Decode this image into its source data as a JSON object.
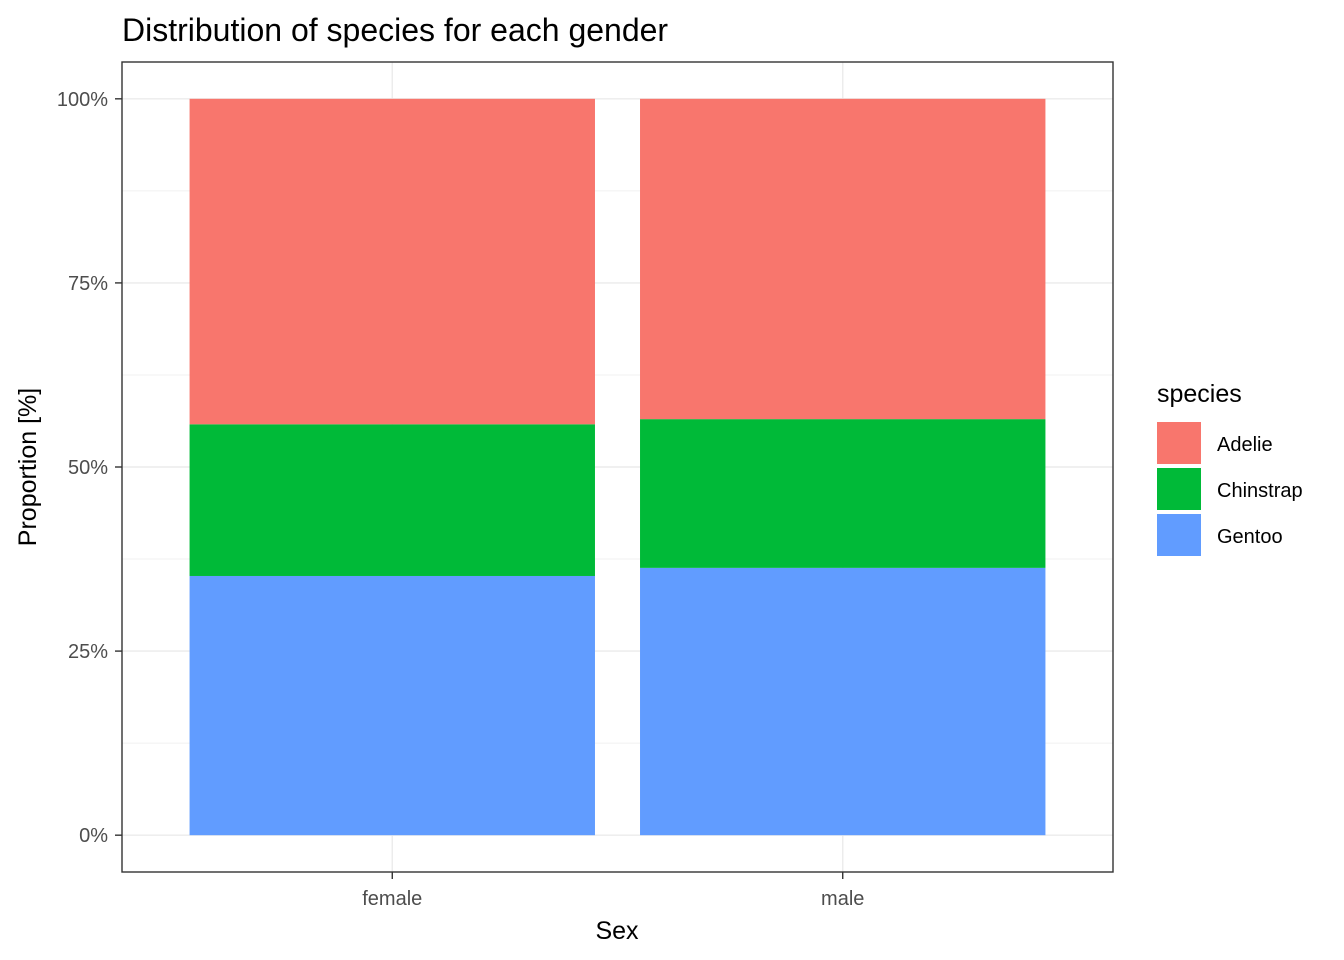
{
  "chart_data": {
    "type": "bar",
    "stacked": true,
    "title": "Distribution of species for each gender",
    "xlabel": "Sex",
    "ylabel": "Proportion [%]",
    "categories": [
      "female",
      "male"
    ],
    "series": [
      {
        "name": "Adelie",
        "values": [
          44.2,
          43.5
        ],
        "color": "#F8766D"
      },
      {
        "name": "Chinstrap",
        "values": [
          20.6,
          20.2
        ],
        "color": "#00BA38"
      },
      {
        "name": "Gentoo",
        "values": [
          35.2,
          36.3
        ],
        "color": "#619CFF"
      }
    ],
    "stack_order_bottom_to_top": [
      "Gentoo",
      "Chinstrap",
      "Adelie"
    ],
    "ylim": [
      -5,
      105
    ],
    "yticks": [
      0,
      25,
      50,
      75,
      100
    ],
    "ytick_labels": [
      "0%",
      "25%",
      "50%",
      "75%",
      "100%"
    ],
    "grid": true,
    "legend": {
      "title": "species",
      "position": "right",
      "entries": [
        "Adelie",
        "Chinstrap",
        "Gentoo"
      ]
    }
  }
}
